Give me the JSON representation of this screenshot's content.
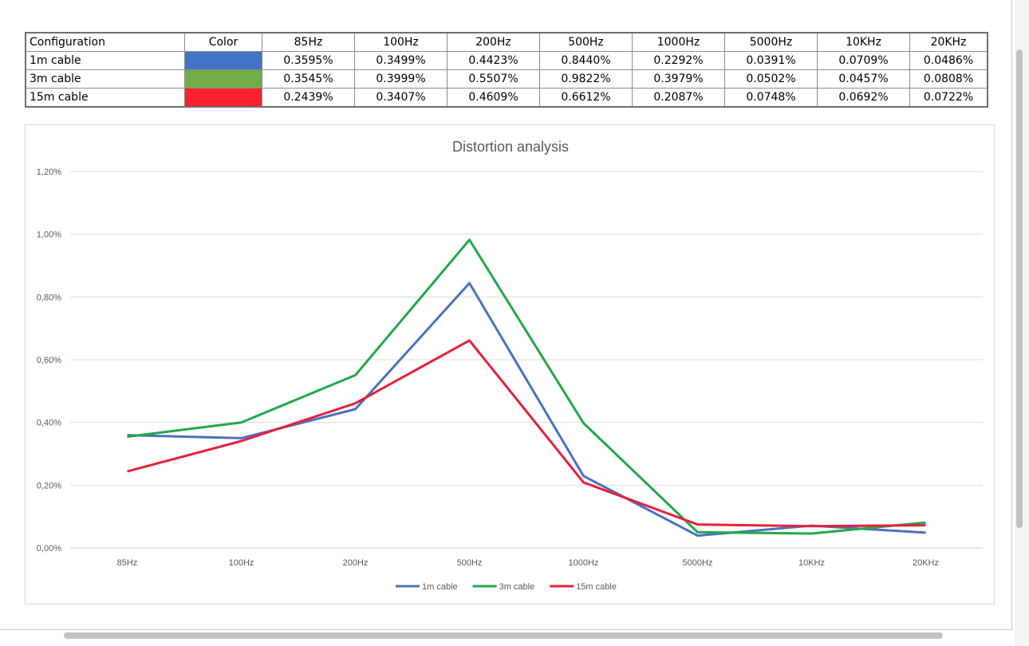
{
  "table": {
    "headers": [
      "Configuration",
      "Color",
      "85Hz",
      "100Hz",
      "200Hz",
      "500Hz",
      "1000Hz",
      "5000Hz",
      "10KHz",
      "20KHz"
    ],
    "rows": [
      {
        "config": "1m cable",
        "color": "#4472c4",
        "values": [
          "0.3595%",
          "0.3499%",
          "0.4423%",
          "0.8440%",
          "0.2292%",
          "0.0391%",
          "0.0709%",
          "0.0486%"
        ]
      },
      {
        "config": "3m cable",
        "color": "#70ad47",
        "values": [
          "0.3545%",
          "0.3999%",
          "0.5507%",
          "0.9822%",
          "0.3979%",
          "0.0502%",
          "0.0457%",
          "0.0808%"
        ]
      },
      {
        "config": "15m cable",
        "color": "#ff2030",
        "values": [
          "0.2439%",
          "0.3407%",
          "0.4609%",
          "0.6612%",
          "0.2087%",
          "0.0748%",
          "0.0692%",
          "0.0722%"
        ]
      }
    ]
  },
  "chart_data": {
    "type": "line",
    "title": "Distortion analysis",
    "categories": [
      "85Hz",
      "100Hz",
      "200Hz",
      "500Hz",
      "1000Hz",
      "5000Hz",
      "10KHz",
      "20KHz"
    ],
    "y_ticks": [
      "0,00%",
      "0,20%",
      "0,40%",
      "0,60%",
      "0,80%",
      "1,00%",
      "1,20%"
    ],
    "ylim": [
      0,
      1.2
    ],
    "y_unit": "%",
    "grid": true,
    "legend_position": "bottom",
    "series": [
      {
        "name": "1m cable",
        "color": "#4a72c0",
        "values": [
          0.3595,
          0.3499,
          0.4423,
          0.844,
          0.2292,
          0.0391,
          0.0709,
          0.0486
        ]
      },
      {
        "name": "3m cable",
        "color": "#22a84a",
        "values": [
          0.3545,
          0.3999,
          0.5507,
          0.9822,
          0.3979,
          0.0502,
          0.0457,
          0.0808
        ]
      },
      {
        "name": "15m cable",
        "color": "#e8203a",
        "values": [
          0.2439,
          0.3407,
          0.4609,
          0.6612,
          0.2087,
          0.0748,
          0.0692,
          0.0722
        ]
      }
    ]
  }
}
